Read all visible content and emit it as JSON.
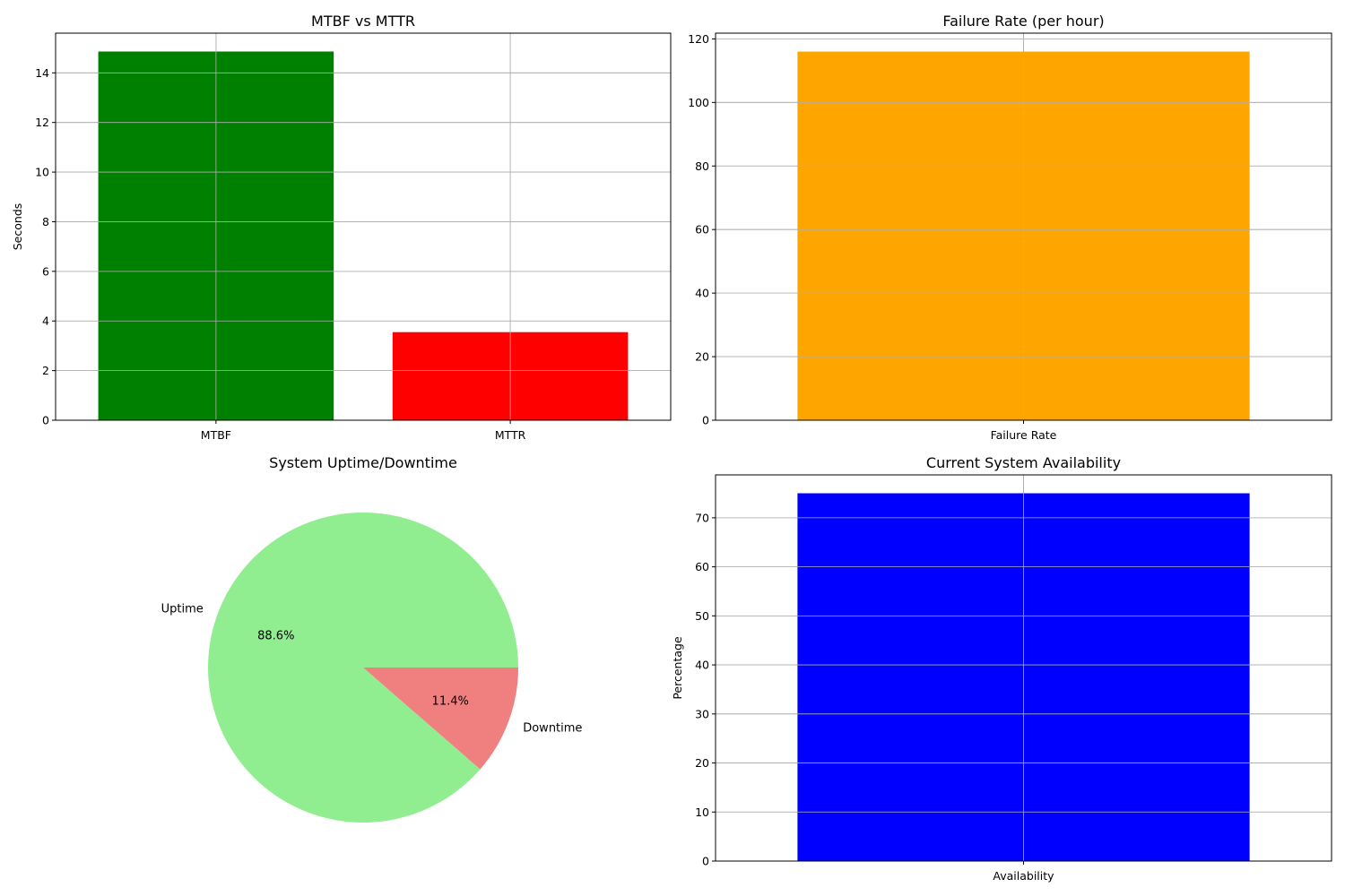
{
  "chart_data": [
    {
      "type": "bar",
      "title": "MTBF vs MTTR",
      "xlabel": "",
      "ylabel": "Seconds",
      "categories": [
        "MTBF",
        "MTTR"
      ],
      "values": [
        14.86,
        3.55
      ],
      "colors": [
        "#008000",
        "#ff0000"
      ],
      "ylim": [
        0,
        15.6
      ],
      "yticks": [
        0,
        2,
        4,
        6,
        8,
        10,
        12,
        14
      ],
      "grid": true
    },
    {
      "type": "bar",
      "title": "Failure Rate (per hour)",
      "xlabel": "",
      "ylabel": "",
      "categories": [
        "Failure Rate"
      ],
      "values": [
        116
      ],
      "colors": [
        "#ffa500"
      ],
      "ylim": [
        0,
        121.8
      ],
      "yticks": [
        0,
        20,
        40,
        60,
        80,
        100,
        120
      ],
      "grid": true
    },
    {
      "type": "pie",
      "title": "System Uptime/Downtime",
      "labels": [
        "Uptime",
        "Downtime"
      ],
      "values": [
        88.6,
        11.4
      ],
      "percent_labels": [
        "88.6%",
        "11.4%"
      ],
      "colors": [
        "#90ee90",
        "#f08080"
      ]
    },
    {
      "type": "bar",
      "title": "Current System Availability",
      "xlabel": "",
      "ylabel": "Percentage",
      "categories": [
        "Availability"
      ],
      "values": [
        75
      ],
      "colors": [
        "#0000ff"
      ],
      "ylim": [
        0,
        78.75
      ],
      "yticks": [
        0,
        10,
        20,
        30,
        40,
        50,
        60,
        70
      ],
      "grid": true
    }
  ]
}
